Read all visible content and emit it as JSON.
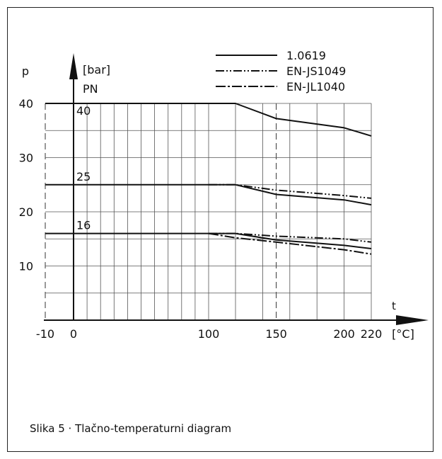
{
  "caption": "Slika 5 · Tlačno-temperaturni diagram",
  "chart_data": {
    "type": "line",
    "title": "",
    "xlabel": "t",
    "xunit": "[°C]",
    "ylabel": "p",
    "yunit": "[bar]",
    "y_sublabel": "PN",
    "xlim": [
      -10,
      230
    ],
    "ylim": [
      0,
      40
    ],
    "x_ticks": [
      -10,
      0,
      100,
      150,
      200,
      220
    ],
    "y_ticks": [
      10,
      20,
      30,
      40
    ],
    "x_grid": [
      -10,
      0,
      10,
      20,
      30,
      40,
      50,
      60,
      70,
      80,
      90,
      100,
      120,
      140,
      150,
      160,
      180,
      200,
      220
    ],
    "y_grid": [
      5,
      10,
      15,
      20,
      25,
      30,
      35,
      40
    ],
    "grid": true,
    "dashed_guides": [
      {
        "axis": "x",
        "value": -10
      },
      {
        "axis": "x",
        "value": 150
      }
    ],
    "legend_position": "top-right",
    "legend": [
      {
        "name": "1.0619",
        "style": "solid"
      },
      {
        "name": "EN-JS1049",
        "style": "dash-dot-dot"
      },
      {
        "name": "EN-JL1040",
        "style": "dash-dot"
      }
    ],
    "pn_labels": [
      {
        "text": "40",
        "value": 40
      },
      {
        "text": "25",
        "value": 25
      },
      {
        "text": "16",
        "value": 16
      }
    ],
    "series": [
      {
        "name": "1.0619",
        "style": "solid",
        "group": "PN40",
        "x": [
          -10,
          120,
          150,
          200,
          220
        ],
        "y": [
          40,
          40,
          37.2,
          35.5,
          34
        ]
      },
      {
        "name": "1.0619",
        "style": "solid",
        "group": "PN25",
        "x": [
          -10,
          120,
          150,
          200,
          220
        ],
        "y": [
          25,
          25,
          23.2,
          22.2,
          21.3
        ]
      },
      {
        "name": "1.0619",
        "style": "solid",
        "group": "PN16",
        "x": [
          -10,
          100,
          120,
          150,
          200,
          220
        ],
        "y": [
          16,
          16,
          16,
          14.8,
          13.8,
          13.2
        ]
      },
      {
        "name": "EN-JS1049",
        "style": "dash-dot-dot",
        "group": "PN25",
        "x": [
          100,
          120,
          150,
          200,
          220
        ],
        "y": [
          25,
          25,
          24,
          23,
          22.5
        ]
      },
      {
        "name": "EN-JS1049",
        "style": "dash-dot-dot",
        "group": "PN16",
        "x": [
          100,
          120,
          150,
          200,
          220
        ],
        "y": [
          16,
          16,
          15.5,
          15,
          14.4
        ]
      },
      {
        "name": "EN-JL1040",
        "style": "dash-dot",
        "group": "PN16",
        "x": [
          100,
          120,
          150,
          200,
          220
        ],
        "y": [
          16,
          15.2,
          14.4,
          13,
          12.2
        ]
      }
    ]
  }
}
